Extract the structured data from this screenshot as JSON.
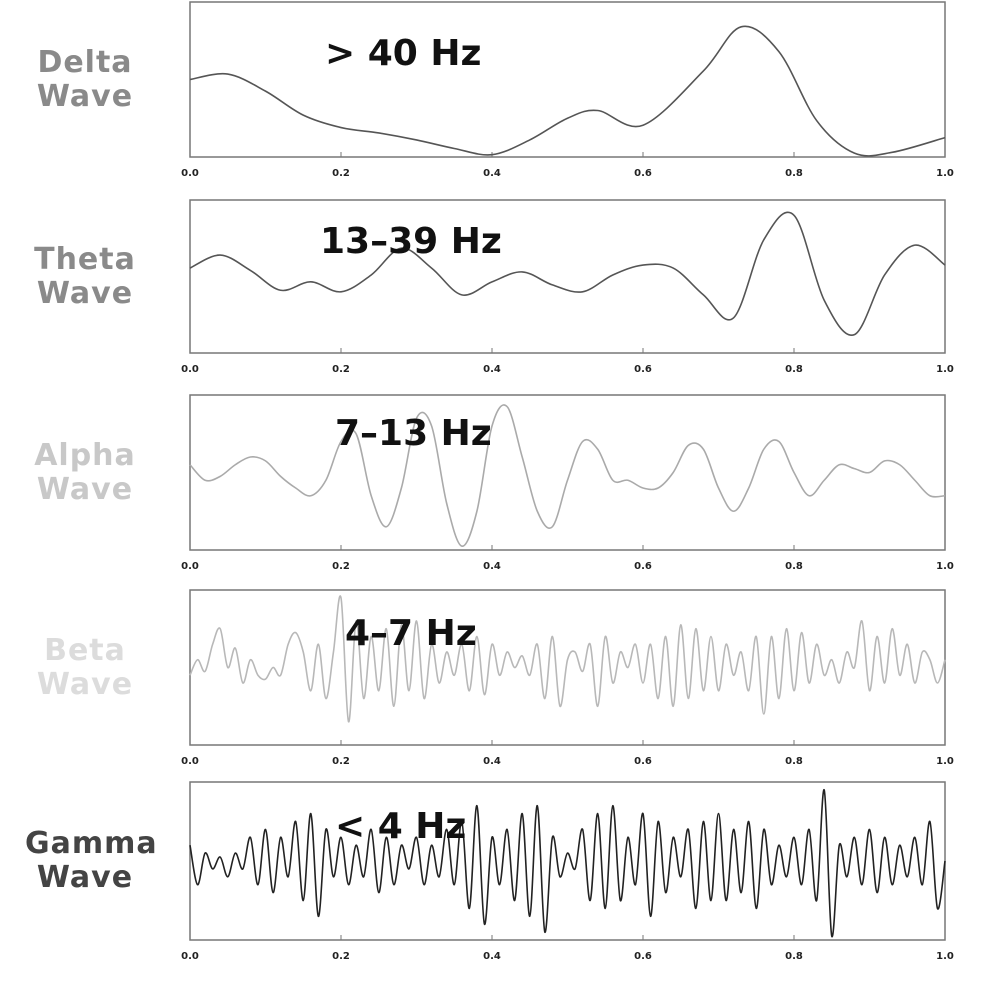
{
  "chart_data": [
    {
      "type": "line",
      "ylabel": "Delta Wave",
      "annotation": "> 40 Hz",
      "color": "#555555",
      "label_color": "#8a8a8a",
      "x": [
        0,
        0.05,
        0.1,
        0.15,
        0.2,
        0.25,
        0.3,
        0.35,
        0.4,
        0.45,
        0.5,
        0.54,
        0.6,
        0.68,
        0.73,
        0.78,
        0.83,
        0.88,
        0.93,
        1.0
      ],
      "values": [
        0,
        0.07,
        -0.15,
        -0.46,
        -0.62,
        -0.69,
        -0.78,
        -0.89,
        -0.97,
        -0.78,
        -0.5,
        -0.4,
        -0.59,
        0.11,
        0.68,
        0.36,
        -0.53,
        -0.95,
        -0.94,
        -0.75
      ],
      "xlim": [
        0,
        1
      ],
      "ylim": [
        -1,
        1
      ],
      "xticks": [
        {
          "value": 0,
          "label": "0.0"
        },
        0.2,
        0.4,
        0.6,
        0.8,
        {
          "value": 1,
          "label": "1.0"
        }
      ]
    },
    {
      "type": "line",
      "ylabel": "Theta Wave",
      "annotation": "13–39 Hz",
      "color": "#555555",
      "label_color": "#8a8a8a",
      "x": [
        0,
        0.04,
        0.08,
        0.12,
        0.16,
        0.2,
        0.24,
        0.28,
        0.32,
        0.36,
        0.4,
        0.44,
        0.48,
        0.52,
        0.56,
        0.6,
        0.64,
        0.68,
        0.72,
        0.76,
        0.8,
        0.84,
        0.88,
        0.92,
        0.96,
        1.0
      ],
      "values": [
        0.11,
        0.28,
        0.08,
        -0.18,
        -0.07,
        -0.2,
        0.02,
        0.37,
        0.11,
        -0.24,
        -0.07,
        0.06,
        -0.11,
        -0.2,
        0.02,
        0.15,
        0.11,
        -0.24,
        -0.54,
        0.48,
        0.8,
        -0.31,
        -0.76,
        0.02,
        0.41,
        0.15
      ],
      "xlim": [
        0,
        1
      ],
      "ylim": [
        -1,
        1
      ],
      "xticks": [
        {
          "value": 0,
          "label": "0.0"
        },
        0.2,
        0.4,
        0.6,
        0.8,
        {
          "value": 1,
          "label": "1.0"
        }
      ]
    },
    {
      "type": "line",
      "ylabel": "Alpha Wave",
      "annotation": "7–13 Hz",
      "color": "#aaaaaa",
      "label_color": "#c8c8c8",
      "x": [
        0,
        0.02,
        0.04,
        0.06,
        0.08,
        0.1,
        0.12,
        0.14,
        0.16,
        0.18,
        0.2,
        0.22,
        0.24,
        0.26,
        0.28,
        0.3,
        0.32,
        0.34,
        0.36,
        0.38,
        0.4,
        0.42,
        0.44,
        0.46,
        0.48,
        0.5,
        0.52,
        0.54,
        0.56,
        0.58,
        0.6,
        0.62,
        0.64,
        0.66,
        0.68,
        0.7,
        0.72,
        0.74,
        0.76,
        0.78,
        0.8,
        0.82,
        0.84,
        0.86,
        0.88,
        0.9,
        0.92,
        0.94,
        0.96,
        0.98,
        1.0
      ],
      "values": [
        0.1,
        -0.1,
        -0.05,
        0.1,
        0.2,
        0.15,
        -0.05,
        -0.2,
        -0.3,
        -0.1,
        0.4,
        0.5,
        -0.3,
        -0.7,
        -0.2,
        0.7,
        0.6,
        -0.4,
        -0.95,
        -0.5,
        0.6,
        0.85,
        0.2,
        -0.5,
        -0.7,
        -0.1,
        0.4,
        0.3,
        -0.1,
        -0.1,
        -0.2,
        -0.2,
        0,
        0.35,
        0.3,
        -0.2,
        -0.5,
        -0.2,
        0.3,
        0.4,
        0,
        -0.3,
        -0.1,
        0.1,
        0.05,
        0,
        0.15,
        0.1,
        -0.1,
        -0.3,
        -0.3
      ],
      "xlim": [
        0,
        1
      ],
      "ylim": [
        -1,
        1
      ],
      "xticks": [
        {
          "value": 0,
          "label": "0.0"
        },
        0.2,
        0.4,
        0.6,
        0.8,
        {
          "value": 1,
          "label": "1.0"
        }
      ]
    },
    {
      "type": "line",
      "ylabel": "Beta Wave",
      "annotation": "4–7 Hz",
      "color": "#b8b8b8",
      "label_color": "#dcdcdc",
      "x": [
        0,
        0.01,
        0.02,
        0.03,
        0.04,
        0.05,
        0.06,
        0.07,
        0.08,
        0.09,
        0.1,
        0.11,
        0.12,
        0.13,
        0.14,
        0.15,
        0.16,
        0.17,
        0.18,
        0.19,
        0.2,
        0.21,
        0.22,
        0.23,
        0.24,
        0.25,
        0.26,
        0.27,
        0.28,
        0.29,
        0.3,
        0.31,
        0.32,
        0.33,
        0.34,
        0.35,
        0.36,
        0.37,
        0.38,
        0.39,
        0.4,
        0.41,
        0.42,
        0.43,
        0.44,
        0.45,
        0.46,
        0.47,
        0.48,
        0.49,
        0.5,
        0.51,
        0.52,
        0.53,
        0.54,
        0.55,
        0.56,
        0.57,
        0.58,
        0.59,
        0.6,
        0.61,
        0.62,
        0.63,
        0.64,
        0.65,
        0.66,
        0.67,
        0.68,
        0.69,
        0.7,
        0.71,
        0.72,
        0.73,
        0.74,
        0.75,
        0.76,
        0.77,
        0.78,
        0.79,
        0.8,
        0.81,
        0.82,
        0.83,
        0.84,
        0.85,
        0.86,
        0.87,
        0.88,
        0.89,
        0.9,
        0.91,
        0.92,
        0.93,
        0.94,
        0.95,
        0.96,
        0.97,
        0.98,
        0.99,
        1.0
      ],
      "values": [
        -0.1,
        0.1,
        -0.05,
        0.3,
        0.5,
        0,
        0.25,
        -0.2,
        0.1,
        -0.1,
        -0.15,
        0,
        -0.1,
        0.3,
        0.45,
        0.2,
        -0.3,
        0.3,
        -0.4,
        0.2,
        0.9,
        -0.7,
        0.6,
        -0.4,
        0.4,
        -0.3,
        0.5,
        -0.5,
        0.55,
        -0.3,
        0.6,
        -0.4,
        0.3,
        -0.2,
        0.2,
        -0.1,
        0.3,
        -0.3,
        0.4,
        -0.35,
        0.3,
        -0.1,
        0.2,
        0,
        0.15,
        -0.1,
        0.3,
        -0.4,
        0.4,
        -0.5,
        0.1,
        0.2,
        -0.05,
        0.3,
        -0.5,
        0.4,
        -0.2,
        0.2,
        0,
        0.3,
        -0.2,
        0.3,
        -0.4,
        0.4,
        -0.5,
        0.55,
        -0.4,
        0.5,
        -0.3,
        0.4,
        -0.3,
        0.3,
        -0.1,
        0.2,
        -0.3,
        0.4,
        -0.6,
        0.4,
        -0.4,
        0.5,
        -0.3,
        0.45,
        -0.2,
        0.3,
        -0.1,
        0.1,
        -0.2,
        0.2,
        0,
        0.6,
        -0.3,
        0.4,
        -0.2,
        0.5,
        -0.1,
        0.3,
        -0.2,
        0.2,
        0.1,
        -0.2,
        0.1
      ],
      "xlim": [
        0,
        1
      ],
      "ylim": [
        -1,
        1
      ],
      "xticks": [
        {
          "value": 0,
          "label": "0.0"
        },
        0.2,
        0.4,
        0.6,
        0.8,
        {
          "value": 1,
          "label": "1.0"
        }
      ]
    },
    {
      "type": "line",
      "ylabel": "Gamma Wave",
      "annotation": "< 4 Hz",
      "color": "#222222",
      "label_color": "#444444",
      "x": [
        0,
        0.01,
        0.02,
        0.03,
        0.04,
        0.05,
        0.06,
        0.07,
        0.08,
        0.09,
        0.1,
        0.11,
        0.12,
        0.13,
        0.14,
        0.15,
        0.16,
        0.17,
        0.18,
        0.19,
        0.2,
        0.21,
        0.22,
        0.23,
        0.24,
        0.25,
        0.26,
        0.27,
        0.28,
        0.29,
        0.3,
        0.31,
        0.32,
        0.33,
        0.34,
        0.35,
        0.36,
        0.37,
        0.38,
        0.39,
        0.4,
        0.41,
        0.42,
        0.43,
        0.44,
        0.45,
        0.46,
        0.47,
        0.48,
        0.49,
        0.5,
        0.51,
        0.52,
        0.53,
        0.54,
        0.55,
        0.56,
        0.57,
        0.58,
        0.59,
        0.6,
        0.61,
        0.62,
        0.63,
        0.64,
        0.65,
        0.66,
        0.67,
        0.68,
        0.69,
        0.7,
        0.71,
        0.72,
        0.73,
        0.74,
        0.75,
        0.76,
        0.77,
        0.78,
        0.79,
        0.8,
        0.81,
        0.82,
        0.83,
        0.84,
        0.85,
        0.86,
        0.87,
        0.88,
        0.89,
        0.9,
        0.91,
        0.92,
        0.93,
        0.94,
        0.95,
        0.96,
        0.97,
        0.98,
        0.99,
        1.0
      ],
      "values": [
        0.2,
        -0.3,
        0.1,
        -0.1,
        0.05,
        -0.2,
        0.1,
        -0.1,
        0.3,
        -0.3,
        0.4,
        -0.4,
        0.3,
        -0.2,
        0.5,
        -0.5,
        0.6,
        -0.7,
        0.4,
        -0.2,
        0.3,
        -0.3,
        0.2,
        -0.2,
        0.4,
        -0.4,
        0.3,
        -0.3,
        0.2,
        -0.1,
        0.3,
        -0.3,
        0.2,
        -0.2,
        0.4,
        -0.3,
        0.5,
        -0.6,
        0.7,
        -0.8,
        0.3,
        -0.3,
        0.4,
        -0.5,
        0.6,
        -0.7,
        0.7,
        -0.9,
        0.3,
        -0.2,
        0.1,
        -0.1,
        0.4,
        -0.5,
        0.6,
        -0.6,
        0.7,
        -0.5,
        0.3,
        -0.3,
        0.6,
        -0.7,
        0.5,
        -0.4,
        0.3,
        -0.2,
        0.4,
        -0.6,
        0.5,
        -0.5,
        0.6,
        -0.5,
        0.4,
        -0.4,
        0.5,
        -0.6,
        0.4,
        -0.3,
        0.2,
        -0.2,
        0.3,
        -0.3,
        0.4,
        -0.5,
        0.9,
        -0.95,
        0.2,
        -0.2,
        0.3,
        -0.3,
        0.4,
        -0.4,
        0.3,
        -0.3,
        0.2,
        -0.2,
        0.3,
        -0.3,
        0.5,
        -0.6,
        0
      ],
      "xlim": [
        0,
        1
      ],
      "ylim": [
        -1,
        1
      ],
      "xticks": [
        {
          "value": 0,
          "label": "0.0"
        },
        0.2,
        0.4,
        0.6,
        0.8,
        {
          "value": 1,
          "label": "1.0"
        }
      ]
    }
  ]
}
